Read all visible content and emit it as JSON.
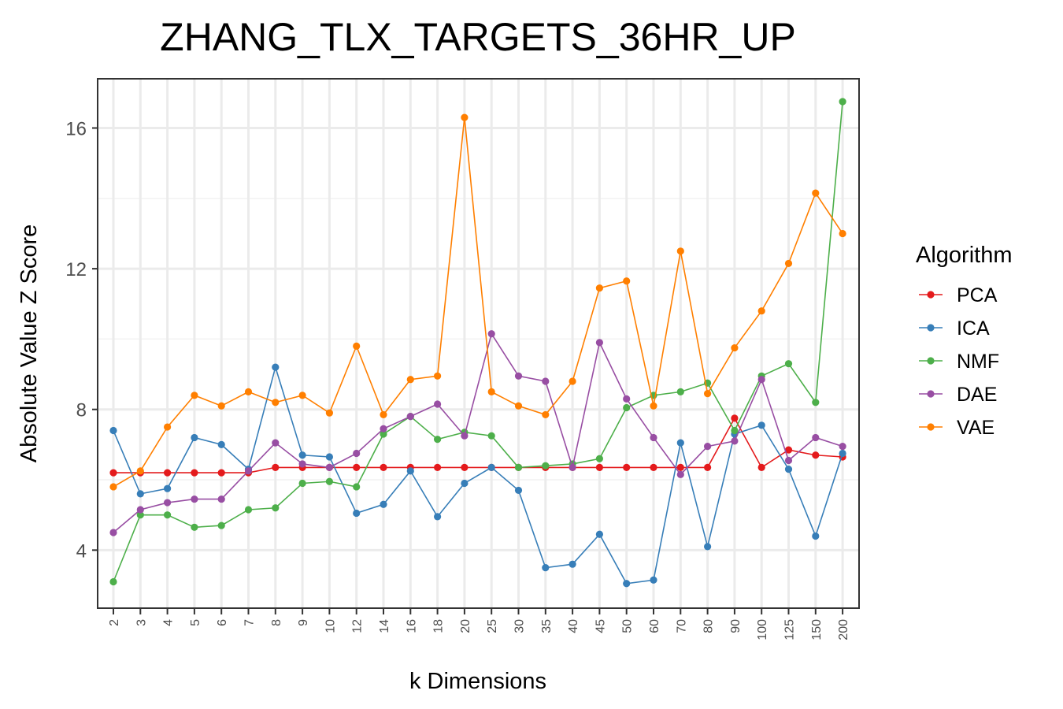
{
  "chart_data": {
    "type": "line",
    "title": "ZHANG_TLX_TARGETS_36HR_UP",
    "xlabel": "k Dimensions",
    "ylabel": "Absolute Value Z Score",
    "categories": [
      "2",
      "3",
      "4",
      "5",
      "6",
      "7",
      "8",
      "9",
      "10",
      "12",
      "14",
      "16",
      "18",
      "20",
      "25",
      "30",
      "35",
      "40",
      "45",
      "50",
      "60",
      "70",
      "80",
      "90",
      "100",
      "125",
      "150",
      "200"
    ],
    "yticks": [
      4,
      8,
      12,
      16
    ],
    "ylim": [
      2.35,
      17.4
    ],
    "grid": true,
    "legend": {
      "title": "Algorithm",
      "position": "right"
    },
    "series": [
      {
        "name": "PCA",
        "color": "#E41A1C",
        "values": [
          6.2,
          6.2,
          6.2,
          6.2,
          6.2,
          6.2,
          6.35,
          6.35,
          6.35,
          6.35,
          6.35,
          6.35,
          6.35,
          6.35,
          6.35,
          6.35,
          6.35,
          6.35,
          6.35,
          6.35,
          6.35,
          6.35,
          6.35,
          7.75,
          6.35,
          6.85,
          6.7,
          6.65
        ]
      },
      {
        "name": "ICA",
        "color": "#377EB8",
        "values": [
          7.4,
          5.6,
          5.75,
          7.2,
          7.0,
          6.3,
          9.2,
          6.7,
          6.65,
          5.05,
          5.3,
          6.25,
          4.95,
          5.9,
          6.35,
          5.7,
          3.5,
          3.6,
          4.45,
          3.05,
          3.15,
          7.05,
          4.1,
          7.3,
          7.55,
          6.3,
          4.4,
          6.75
        ]
      },
      {
        "name": "NMF",
        "color": "#4DAF4A",
        "values": [
          3.1,
          5.0,
          5.0,
          4.65,
          4.7,
          5.15,
          5.2,
          5.9,
          5.95,
          5.8,
          7.3,
          7.8,
          7.15,
          7.35,
          7.25,
          6.35,
          6.4,
          6.45,
          6.6,
          8.05,
          8.4,
          8.5,
          8.75,
          7.4,
          8.95,
          9.3,
          8.2,
          16.75
        ]
      },
      {
        "name": "DAE",
        "color": "#984EA3",
        "values": [
          4.5,
          5.15,
          5.35,
          5.45,
          5.45,
          6.25,
          7.05,
          6.45,
          6.35,
          6.75,
          7.45,
          7.8,
          8.15,
          7.25,
          10.15,
          8.95,
          8.8,
          6.35,
          9.9,
          8.3,
          7.2,
          6.15,
          6.95,
          7.1,
          8.85,
          6.55,
          7.2,
          6.95
        ]
      },
      {
        "name": "VAE",
        "color": "#FF7F00",
        "values": [
          5.8,
          6.25,
          7.5,
          8.4,
          8.1,
          8.5,
          8.2,
          8.4,
          7.9,
          9.8,
          7.85,
          8.85,
          8.95,
          16.3,
          8.5,
          8.1,
          7.85,
          8.8,
          11.45,
          11.65,
          8.1,
          12.5,
          8.45,
          9.75,
          10.8,
          12.15,
          14.15,
          13.0
        ]
      }
    ]
  }
}
